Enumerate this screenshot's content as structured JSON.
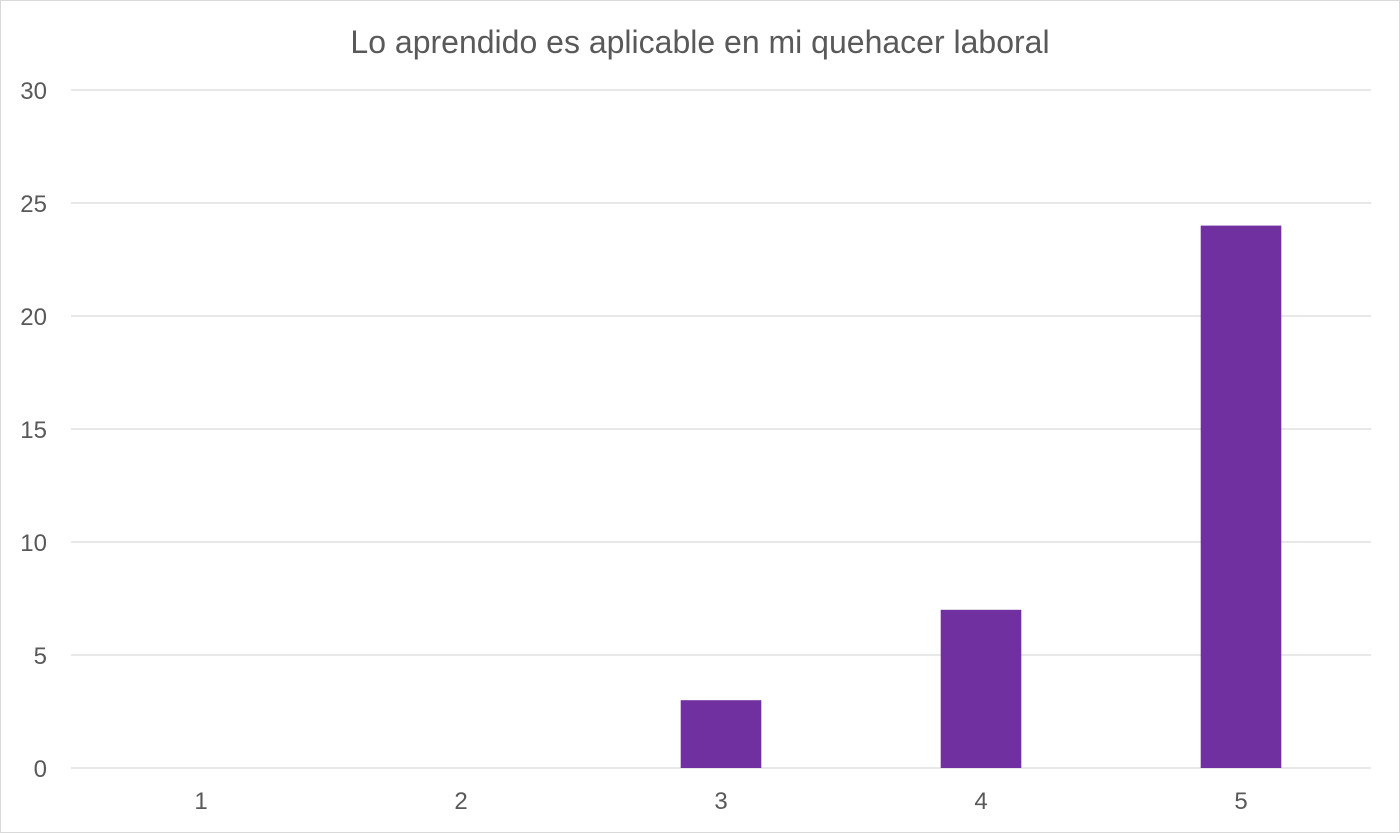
{
  "chart_data": {
    "type": "bar",
    "title": "Lo aprendido es aplicable en mi quehacer laboral",
    "xlabel": "",
    "ylabel": "",
    "categories": [
      "1",
      "2",
      "3",
      "4",
      "5"
    ],
    "values": [
      0,
      0,
      3,
      7,
      24
    ],
    "ylim": [
      0,
      30
    ],
    "yticks": [
      "0",
      "5",
      "10",
      "15",
      "20",
      "25",
      "30"
    ],
    "grid": true,
    "legend": "none",
    "bar_color": "#7030A0",
    "grid_color": "#D9D9D9",
    "text_color": "#595959"
  }
}
